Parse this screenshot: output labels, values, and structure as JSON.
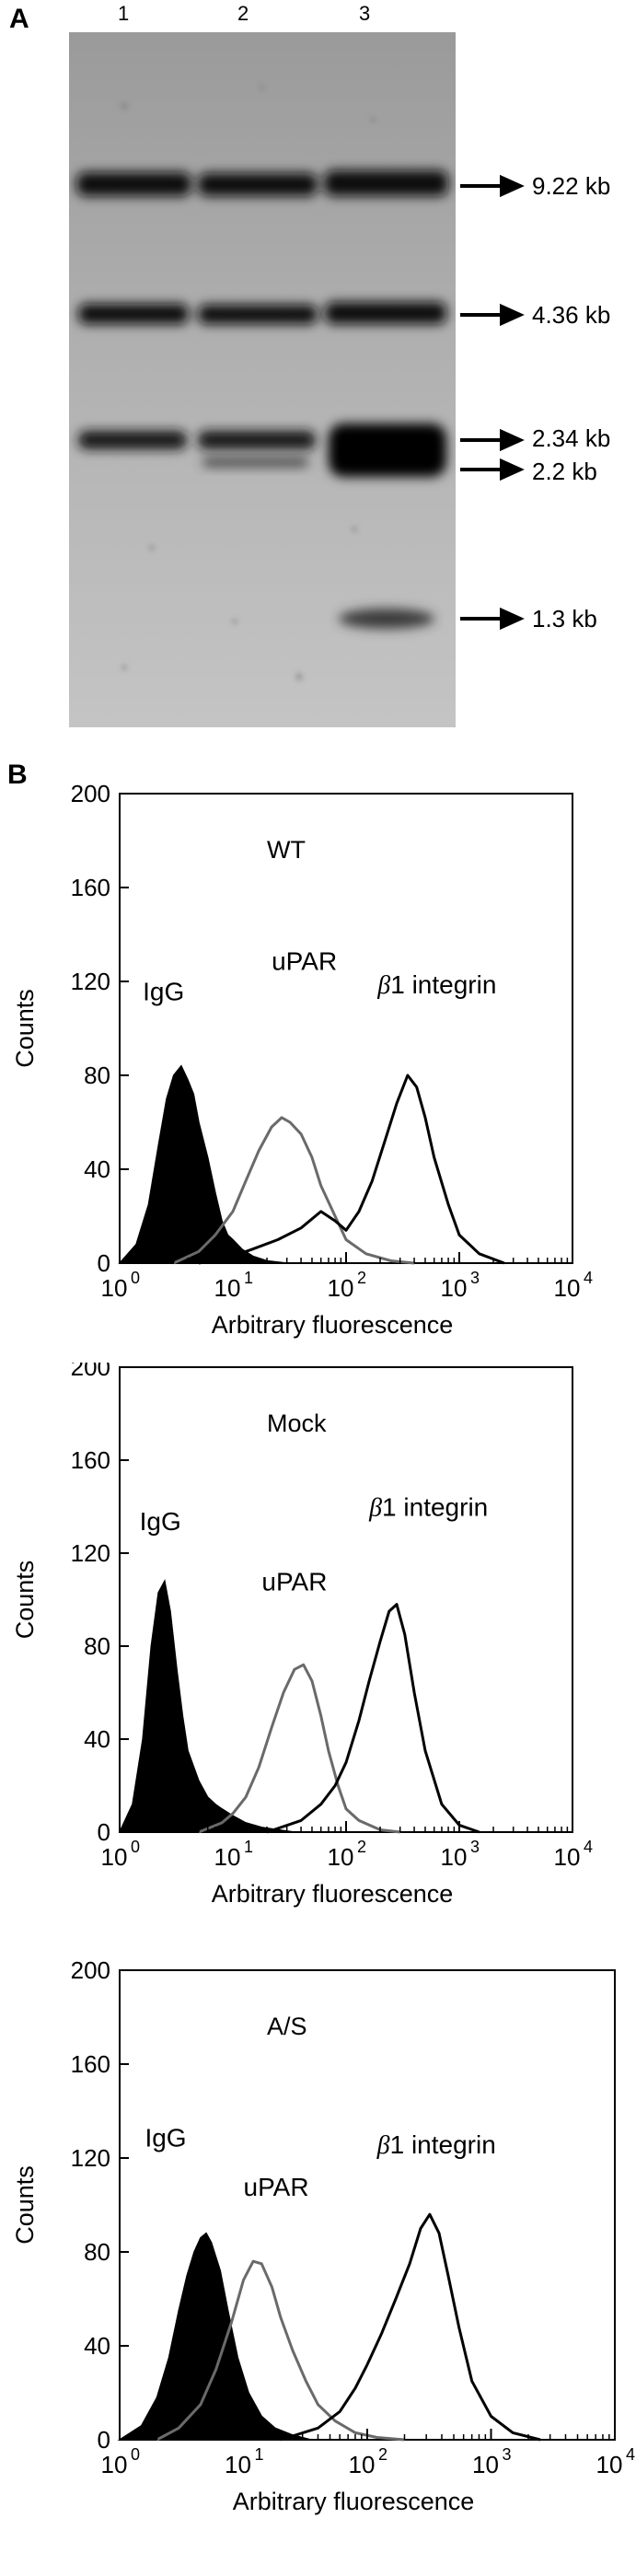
{
  "panel_a": {
    "letter": "A",
    "lanes": [
      "1",
      "2",
      "3"
    ],
    "markers": [
      "9.22 kb",
      "4.36 kb",
      "2.34 kb",
      "2.2 kb",
      "1.3 kb"
    ]
  },
  "panel_b": {
    "letter": "B"
  },
  "chart_data": [
    {
      "type": "histogram",
      "label": "WT",
      "xlabel": "Arbitrary fluorescence",
      "ylabel": "Counts",
      "x_scale": "log",
      "xlim": [
        1,
        10000
      ],
      "ylim": [
        0,
        200
      ],
      "yticks": [
        "0",
        "40",
        "80",
        "120",
        "160",
        "200"
      ],
      "xtick_mantissa": "10",
      "xtick_exponents": [
        "0",
        "1",
        "2",
        "3",
        "4"
      ],
      "series": [
        {
          "name": "IgG",
          "fill": "#000000",
          "stroke": "#000000",
          "label_pos": [
            1.6,
            112
          ],
          "x": [
            1,
            1.4,
            1.8,
            2.2,
            2.6,
            3,
            3.5,
            4,
            4.5,
            5,
            6,
            7,
            8,
            9,
            10,
            12,
            15,
            20,
            30
          ],
          "y": [
            0,
            8,
            25,
            50,
            70,
            80,
            84,
            78,
            72,
            60,
            45,
            30,
            18,
            12,
            10,
            6,
            3,
            1,
            0
          ]
        },
        {
          "name": "uPAR",
          "fill": "none",
          "stroke": "#6a6a6a",
          "label_pos": [
            22,
            125
          ],
          "x": [
            3,
            5,
            7,
            10,
            13,
            17,
            22,
            27,
            32,
            40,
            50,
            60,
            80,
            100,
            150,
            250,
            400
          ],
          "y": [
            0,
            5,
            12,
            22,
            35,
            48,
            58,
            62,
            60,
            55,
            45,
            33,
            20,
            10,
            4,
            1,
            0
          ]
        },
        {
          "name": "β1 integrin",
          "fill": "none",
          "stroke": "#000000",
          "label_pos": [
            190,
            115
          ],
          "x": [
            5,
            10,
            15,
            25,
            40,
            60,
            80,
            100,
            130,
            170,
            220,
            280,
            350,
            420,
            500,
            600,
            800,
            1000,
            1500,
            2500
          ],
          "y": [
            0,
            3,
            6,
            10,
            15,
            22,
            18,
            14,
            22,
            35,
            52,
            68,
            80,
            75,
            62,
            45,
            25,
            12,
            4,
            0
          ]
        }
      ]
    },
    {
      "type": "histogram",
      "label": "Mock",
      "xlabel": "Arbitrary fluorescence",
      "ylabel": "Counts",
      "x_scale": "log",
      "xlim": [
        1,
        10000
      ],
      "ylim": [
        0,
        200
      ],
      "yticks": [
        "0",
        "40",
        "80",
        "120",
        "160",
        "200"
      ],
      "xtick_mantissa": "10",
      "xtick_exponents": [
        "0",
        "1",
        "2",
        "3",
        "4"
      ],
      "series": [
        {
          "name": "IgG",
          "fill": "#000000",
          "stroke": "#000000",
          "label_pos": [
            1.5,
            130
          ],
          "x": [
            1,
            1.3,
            1.6,
            1.9,
            2.2,
            2.5,
            2.8,
            3.2,
            3.6,
            4,
            5,
            6,
            7,
            8,
            10,
            13,
            18,
            25,
            35
          ],
          "y": [
            0,
            12,
            40,
            80,
            103,
            108,
            95,
            70,
            50,
            35,
            22,
            15,
            12,
            10,
            7,
            4,
            2,
            1,
            0
          ]
        },
        {
          "name": "uPAR",
          "fill": "none",
          "stroke": "#6a6a6a",
          "label_pos": [
            18,
            104
          ],
          "x": [
            5,
            8,
            10,
            13,
            17,
            22,
            28,
            35,
            42,
            50,
            60,
            70,
            85,
            100,
            130,
            200,
            300
          ],
          "y": [
            0,
            4,
            8,
            15,
            28,
            45,
            60,
            70,
            72,
            65,
            50,
            35,
            20,
            10,
            5,
            1,
            0
          ]
        },
        {
          "name": "β1 integrin",
          "fill": "none",
          "stroke": "#000000",
          "label_pos": [
            160,
            136
          ],
          "x": [
            20,
            40,
            60,
            80,
            100,
            130,
            160,
            200,
            240,
            280,
            330,
            400,
            500,
            700,
            1000,
            1500
          ],
          "y": [
            0,
            5,
            12,
            20,
            30,
            48,
            65,
            82,
            95,
            98,
            85,
            60,
            35,
            12,
            3,
            0
          ]
        }
      ]
    },
    {
      "type": "histogram",
      "label": "A/S",
      "xlabel": "Arbitrary fluorescence",
      "ylabel": "Counts",
      "x_scale": "log",
      "xlim": [
        1,
        10000
      ],
      "ylim": [
        0,
        200
      ],
      "yticks": [
        "0",
        "40",
        "80",
        "120",
        "160",
        "200"
      ],
      "xtick_mantissa": "10",
      "xtick_exponents": [
        "0",
        "1",
        "2",
        "3",
        "4"
      ],
      "series": [
        {
          "name": "IgG",
          "fill": "#000000",
          "stroke": "#000000",
          "label_pos": [
            1.6,
            125
          ],
          "x": [
            1,
            1.5,
            2,
            2.5,
            3,
            3.5,
            4,
            4.5,
            5,
            5.5,
            6.5,
            7.5,
            9,
            11,
            14,
            18,
            25,
            35
          ],
          "y": [
            0,
            6,
            18,
            35,
            55,
            70,
            80,
            86,
            88,
            84,
            72,
            55,
            35,
            20,
            10,
            5,
            2,
            0
          ]
        },
        {
          "name": "uPAR",
          "fill": "none",
          "stroke": "#6a6a6a",
          "label_pos": [
            10,
            104
          ],
          "x": [
            2,
            3,
            4.5,
            6,
            8,
            10,
            12,
            14,
            17,
            20,
            25,
            32,
            40,
            55,
            80,
            120,
            200
          ],
          "y": [
            0,
            5,
            15,
            30,
            50,
            68,
            76,
            75,
            65,
            52,
            38,
            25,
            15,
            8,
            3,
            1,
            0
          ]
        },
        {
          "name": "β1 integrin",
          "fill": "none",
          "stroke": "#000000",
          "label_pos": [
            120,
            122
          ],
          "x": [
            20,
            40,
            60,
            80,
            100,
            130,
            170,
            220,
            270,
            320,
            380,
            450,
            550,
            700,
            1000,
            1500,
            2500
          ],
          "y": [
            0,
            5,
            12,
            22,
            32,
            45,
            60,
            75,
            90,
            96,
            88,
            70,
            48,
            25,
            10,
            3,
            0
          ]
        }
      ]
    }
  ]
}
